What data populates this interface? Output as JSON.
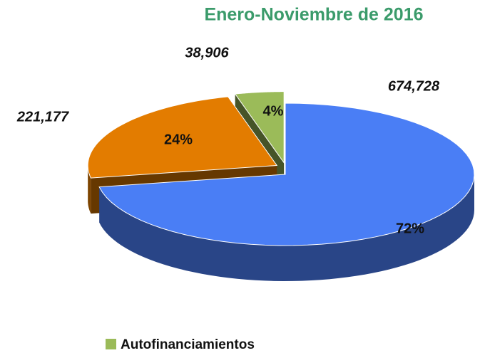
{
  "chart_data": {
    "type": "pie",
    "title": "Enero-Noviembre de 2016",
    "categories": [
      null,
      null,
      "Autofinanciamientos"
    ],
    "values": [
      674728,
      221177,
      38906
    ],
    "value_labels": [
      "674,728",
      "221,177",
      "38,906"
    ],
    "percent_values": [
      72,
      24,
      4
    ],
    "percent_labels": [
      "72%",
      "24%",
      "4%"
    ],
    "colors": [
      "#4a7ef5",
      "#e37c00",
      "#9bbb59"
    ],
    "legend": "bottom"
  }
}
